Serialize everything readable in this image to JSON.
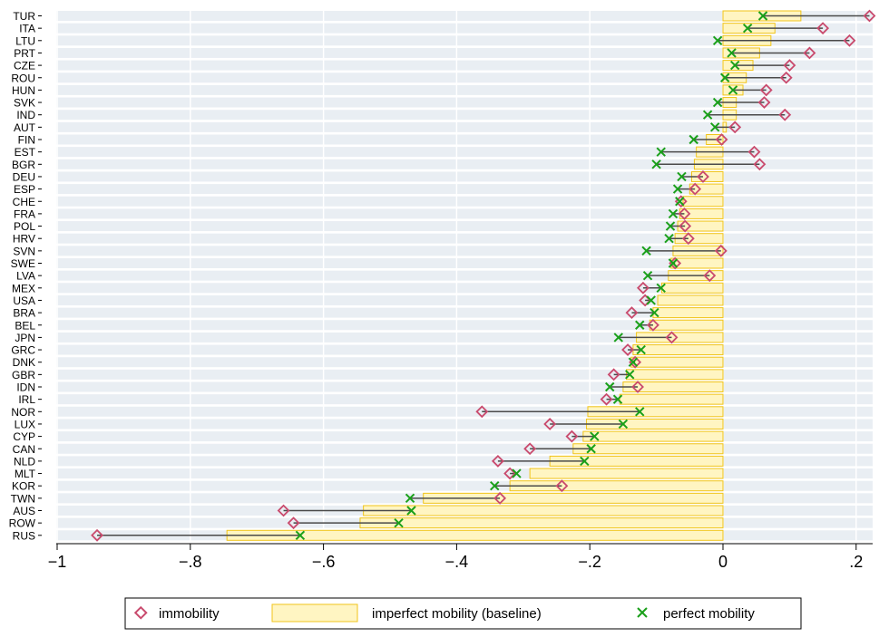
{
  "chart_data": {
    "type": "dot-range-bar",
    "orientation": "horizontal",
    "categories": [
      "TUR",
      "ITA",
      "LTU",
      "PRT",
      "CZE",
      "ROU",
      "HUN",
      "SVK",
      "IND",
      "AUT",
      "FIN",
      "EST",
      "BGR",
      "DEU",
      "ESP",
      "CHE",
      "FRA",
      "POL",
      "HRV",
      "SVN",
      "SWE",
      "LVA",
      "MEX",
      "USA",
      "BRA",
      "BEL",
      "JPN",
      "GRC",
      "DNK",
      "GBR",
      "IDN",
      "IRL",
      "NOR",
      "LUX",
      "CYP",
      "CAN",
      "NLD",
      "MLT",
      "KOR",
      "TWN",
      "AUS",
      "ROW",
      "RUS"
    ],
    "series": [
      {
        "name": "immobility",
        "marker": "diamond",
        "values": [
          0.22,
          0.15,
          0.19,
          0.13,
          0.1,
          0.095,
          0.065,
          0.062,
          0.093,
          0.018,
          -0.002,
          0.047,
          0.055,
          -0.03,
          -0.042,
          -0.063,
          -0.058,
          -0.057,
          -0.052,
          -0.003,
          -0.072,
          -0.02,
          -0.12,
          -0.117,
          -0.137,
          -0.105,
          -0.077,
          -0.143,
          -0.132,
          -0.164,
          -0.128,
          -0.175,
          -0.362,
          -0.26,
          -0.227,
          -0.29,
          -0.338,
          -0.32,
          -0.242,
          -0.335,
          -0.66,
          -0.645,
          -0.94
        ]
      },
      {
        "name": "imperfect mobility (baseline)",
        "marker": "bar",
        "values": [
          0.117,
          0.078,
          0.072,
          0.055,
          0.045,
          0.035,
          0.03,
          0.02,
          0.02,
          0.005,
          -0.025,
          -0.04,
          -0.043,
          -0.047,
          -0.05,
          -0.06,
          -0.065,
          -0.068,
          -0.072,
          -0.075,
          -0.078,
          -0.082,
          -0.092,
          -0.098,
          -0.105,
          -0.11,
          -0.13,
          -0.135,
          -0.138,
          -0.145,
          -0.15,
          -0.155,
          -0.203,
          -0.205,
          -0.21,
          -0.225,
          -0.26,
          -0.29,
          -0.32,
          -0.45,
          -0.54,
          -0.545,
          -0.745
        ]
      },
      {
        "name": "perfect mobility",
        "marker": "x",
        "values": [
          0.06,
          0.037,
          -0.008,
          0.013,
          0.018,
          0.003,
          0.015,
          -0.008,
          -0.023,
          -0.012,
          -0.044,
          -0.093,
          -0.1,
          -0.062,
          -0.068,
          -0.065,
          -0.075,
          -0.079,
          -0.081,
          -0.115,
          -0.075,
          -0.113,
          -0.093,
          -0.108,
          -0.103,
          -0.125,
          -0.157,
          -0.123,
          -0.135,
          -0.14,
          -0.17,
          -0.158,
          -0.125,
          -0.15,
          -0.193,
          -0.198,
          -0.208,
          -0.31,
          -0.343,
          -0.47,
          -0.468,
          -0.487,
          -0.635
        ]
      }
    ],
    "xlim": [
      -1.02,
      0.23
    ],
    "xticks": [
      -1,
      -0.8,
      -0.6,
      -0.4,
      -0.2,
      0,
      0.2
    ],
    "xtick_labels": [
      "−1",
      "−.8",
      "−.6",
      "−.4",
      "−.2",
      "0",
      ".2"
    ],
    "grid": "vertical",
    "legend_position": "bottom",
    "colors": {
      "immobility": "#c94a6d",
      "bar_fill": "#fff5c2",
      "bar_edge": "#f0c419",
      "perfect_mobility": "#1aa01a",
      "connector": "#4a4a4a",
      "band": "#e9eef3",
      "grid": "#ffffff"
    },
    "title": "",
    "xlabel": "",
    "ylabel": ""
  }
}
